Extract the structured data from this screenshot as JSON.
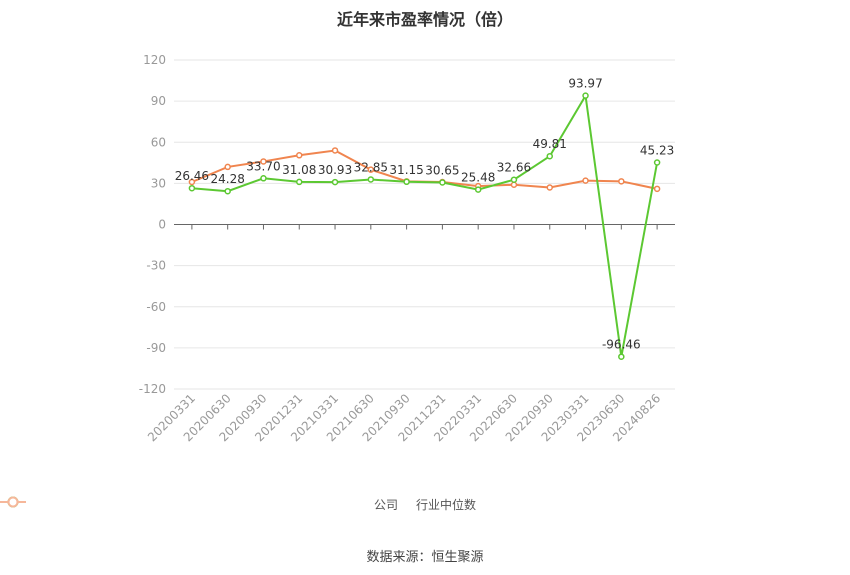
{
  "chart_data": {
    "type": "line",
    "title": "近年来市盈率情况（倍）",
    "categories": [
      "20200331",
      "20200630",
      "20200930",
      "20201231",
      "20210331",
      "20210630",
      "20210930",
      "20211231",
      "20220331",
      "20220630",
      "20220930",
      "20230331",
      "20230630",
      "20240826"
    ],
    "series": [
      {
        "name": "公司",
        "color": "#5cc832",
        "values": [
          26.46,
          24.28,
          33.7,
          31.08,
          30.93,
          32.85,
          31.15,
          30.65,
          25.48,
          32.66,
          49.81,
          93.97,
          -96.46,
          45.23
        ],
        "labels": [
          "26.46",
          "24.28",
          "33.70",
          "31.08",
          "30.93",
          "32.85",
          "31.15",
          "30.65",
          "25.48",
          "32.66",
          "49.81",
          "93.97",
          "-96.46",
          "45.23"
        ]
      },
      {
        "name": "行业中位数",
        "color": "#f0854f",
        "values": [
          31,
          42,
          46,
          50.5,
          54,
          40,
          31.5,
          31,
          28,
          29,
          27,
          32,
          31.5,
          26
        ]
      }
    ],
    "yticks": [
      "120",
      "90",
      "60",
      "30",
      "0",
      "-30",
      "-60",
      "-90",
      "-120"
    ],
    "ylim": [
      -120,
      120
    ],
    "grid": true,
    "legend": "bottom"
  },
  "source": "数据来源：恒生聚源"
}
